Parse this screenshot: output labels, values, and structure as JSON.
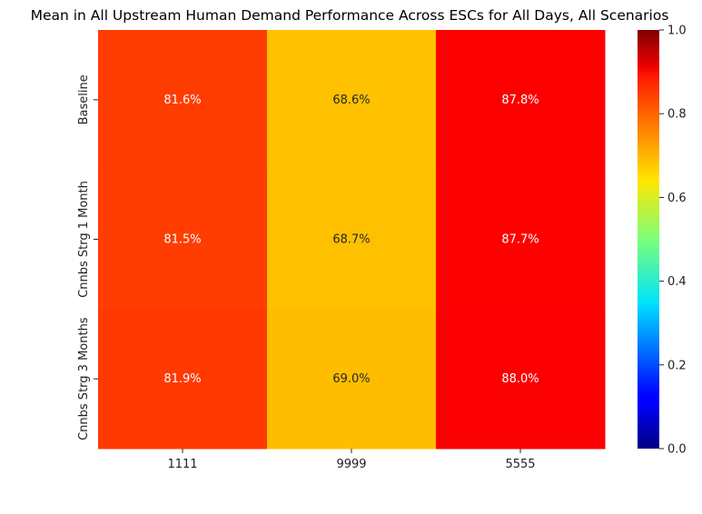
{
  "chart_data": {
    "type": "heatmap",
    "title": "Mean in All Upstream Human Demand Performance Across ESCs for All Days, All Scenarios",
    "xlabel": "",
    "ylabel": "",
    "x_categories": [
      "1111",
      "9999",
      "5555"
    ],
    "y_categories": [
      "Baseline",
      "Cnnbs Strg 1 Month",
      "Cnnbs Strg 3 Months"
    ],
    "values": [
      [
        0.816,
        0.686,
        0.878
      ],
      [
        0.815,
        0.687,
        0.877
      ],
      [
        0.819,
        0.69,
        0.88
      ]
    ],
    "cell_labels": [
      [
        "81.6%",
        "68.6%",
        "87.8%"
      ],
      [
        "81.5%",
        "68.7%",
        "87.7%"
      ],
      [
        "81.9%",
        "69.0%",
        "88.0%"
      ]
    ],
    "colormap": "jet",
    "vmin": 0.0,
    "vmax": 1.0,
    "colorbar_ticks": [
      "0.0",
      "0.2",
      "0.4",
      "0.6",
      "0.8",
      "1.0"
    ],
    "grid": false,
    "legend": "colorbar-right"
  }
}
